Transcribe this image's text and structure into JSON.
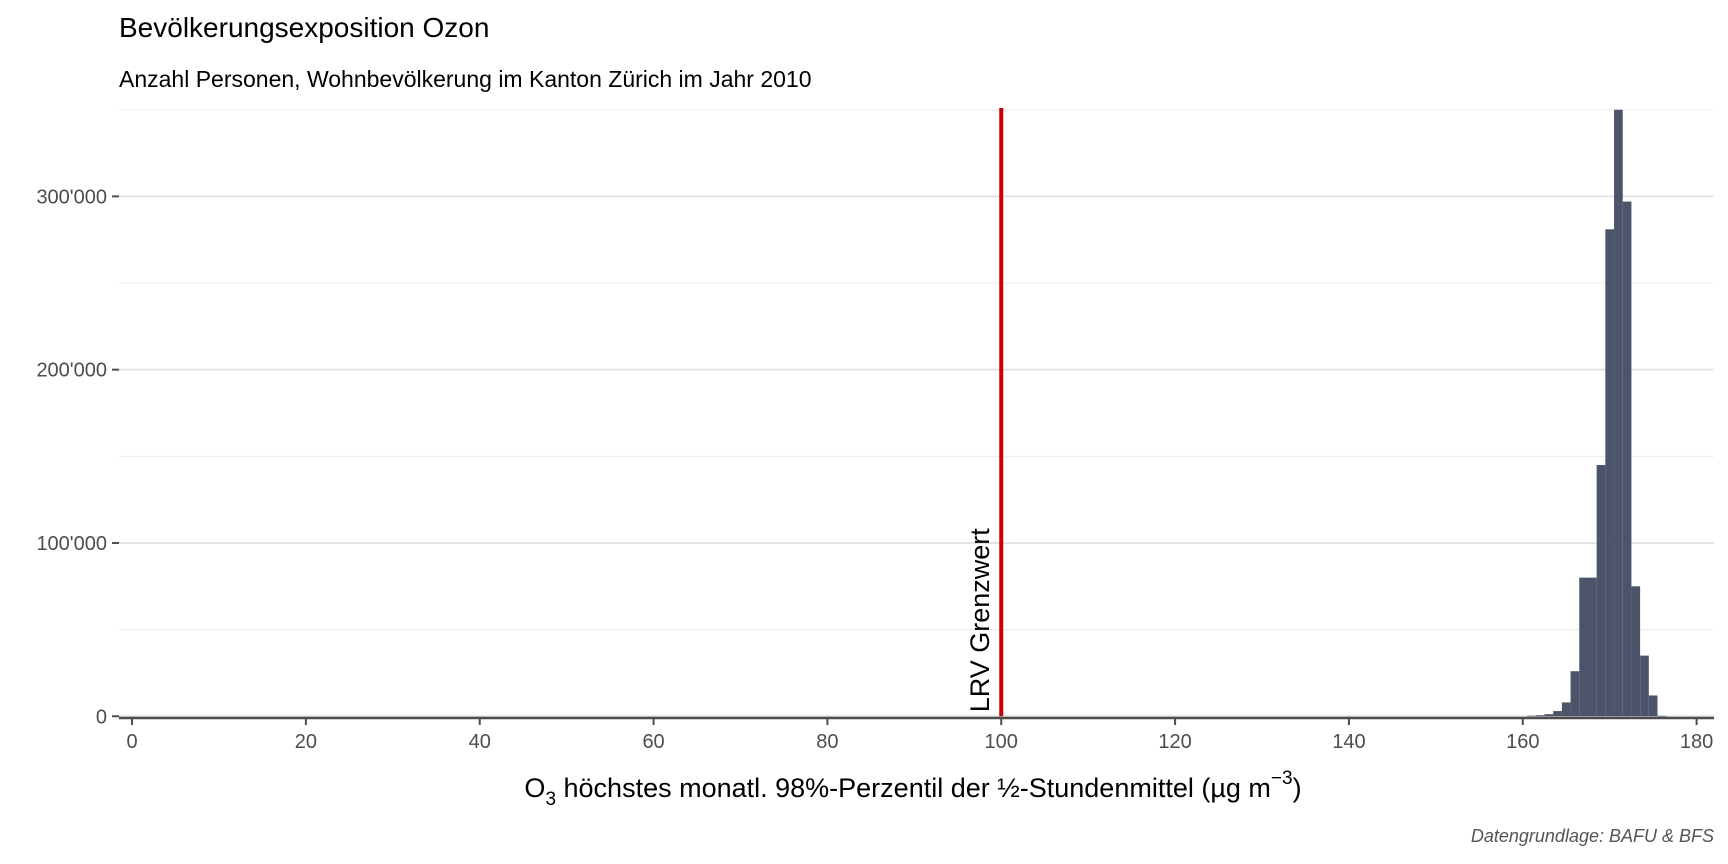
{
  "chart_data": {
    "type": "bar",
    "title": "Bevölkerungsexposition Ozon",
    "subtitle": "Anzahl Personen, Wohnbevölkerung im Kanton Zürich im Jahr 2010",
    "caption": "Datengrundlage: BAFU & BFS",
    "xlabel": {
      "prefix": "O",
      "subscript": "3",
      "middle": " höchstes monatl. 98%-Perzentil der ½-Stundenmittel (µg m",
      "superscript": "−3",
      "suffix": ")"
    },
    "ylabel": "",
    "xlim": [
      -1.5,
      182
    ],
    "ylim": [
      -1000,
      351000
    ],
    "x_ticks": [
      0,
      20,
      40,
      60,
      80,
      100,
      120,
      140,
      160,
      180
    ],
    "x_tick_labels": [
      "0",
      "20",
      "40",
      "60",
      "80",
      "100",
      "120",
      "140",
      "160",
      "180"
    ],
    "y_ticks": [
      0,
      100000,
      200000,
      300000
    ],
    "y_tick_labels": [
      "0",
      "100'000",
      "200'000",
      "300'000"
    ],
    "y_minor_ticks": [
      50000,
      150000,
      250000,
      350000
    ],
    "bin_width": 1,
    "x": [
      161,
      162,
      163,
      164,
      165,
      166,
      167,
      168,
      169,
      170,
      171,
      172,
      173,
      174,
      175,
      176
    ],
    "values": [
      300,
      600,
      1200,
      3000,
      8000,
      26000,
      80000,
      80000,
      145000,
      281000,
      350000,
      297000,
      75000,
      35000,
      12000,
      200
    ],
    "bar_color": "#4b5468",
    "reference_line": {
      "x": 100,
      "label": "LRV Grenzwert",
      "color": "#cc0000"
    },
    "grid": true,
    "legend": "none"
  }
}
